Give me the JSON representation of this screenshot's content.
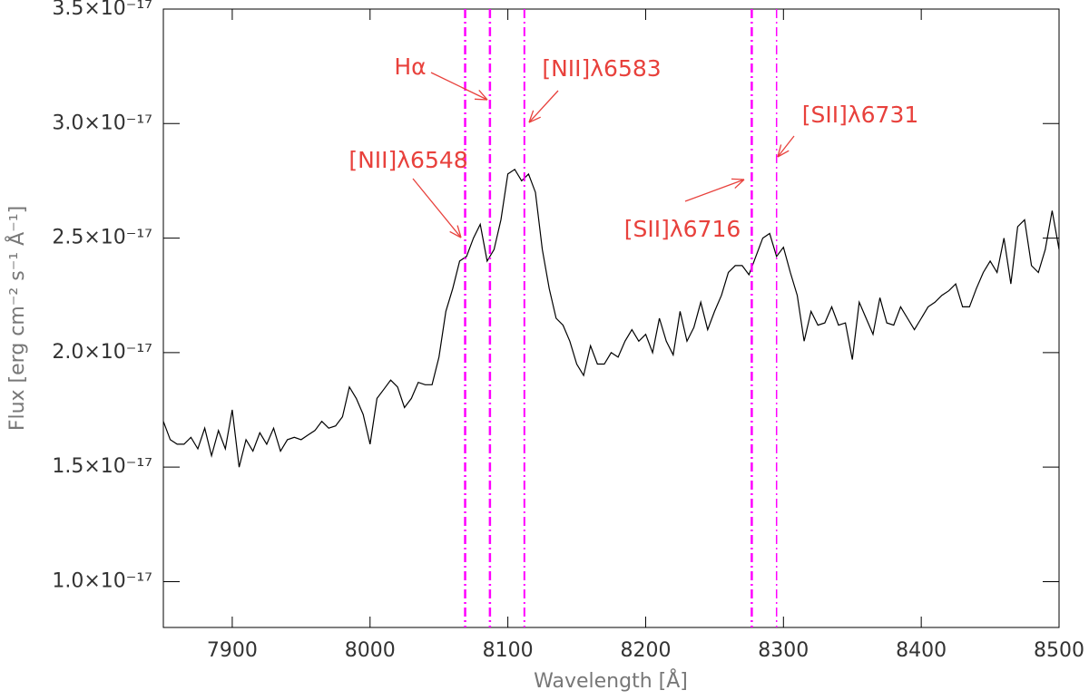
{
  "chart_data": {
    "type": "line",
    "xlabel": "Wavelength [Å]",
    "ylabel": "Flux [erg cm⁻² s⁻¹ Å⁻¹]",
    "color": "#000000",
    "x": [
      7850,
      7855,
      7860,
      7865,
      7870,
      7875,
      7880,
      7885,
      7890,
      7895,
      7900,
      7905,
      7910,
      7915,
      7920,
      7925,
      7930,
      7935,
      7940,
      7945,
      7950,
      7955,
      7960,
      7965,
      7970,
      7975,
      7980,
      7985,
      7990,
      7995,
      8000,
      8005,
      8010,
      8015,
      8020,
      8025,
      8030,
      8035,
      8040,
      8045,
      8050,
      8055,
      8060,
      8065,
      8070,
      8075,
      8080,
      8085,
      8090,
      8095,
      8100,
      8105,
      8110,
      8115,
      8120,
      8125,
      8130,
      8135,
      8140,
      8145,
      8150,
      8155,
      8160,
      8165,
      8170,
      8175,
      8180,
      8185,
      8190,
      8195,
      8200,
      8205,
      8210,
      8215,
      8220,
      8225,
      8230,
      8235,
      8240,
      8245,
      8250,
      8255,
      8260,
      8265,
      8270,
      8275,
      8280,
      8285,
      8290,
      8295,
      8300,
      8305,
      8310,
      8315,
      8320,
      8325,
      8330,
      8335,
      8340,
      8345,
      8350,
      8355,
      8360,
      8365,
      8370,
      8375,
      8380,
      8385,
      8390,
      8395,
      8400,
      8405,
      8410,
      8415,
      8420,
      8425,
      8430,
      8435,
      8440,
      8445,
      8450,
      8455,
      8460,
      8465,
      8470,
      8475,
      8480,
      8485,
      8490,
      8495,
      8500
    ],
    "values": [
      1.7e-17,
      1.62e-17,
      1.6e-17,
      1.6e-17,
      1.63e-17,
      1.58e-17,
      1.67e-17,
      1.55e-17,
      1.66e-17,
      1.58e-17,
      1.75e-17,
      1.5e-17,
      1.62e-17,
      1.57e-17,
      1.65e-17,
      1.6e-17,
      1.67e-17,
      1.57e-17,
      1.62e-17,
      1.63e-17,
      1.62e-17,
      1.64e-17,
      1.66e-17,
      1.7e-17,
      1.67e-17,
      1.68e-17,
      1.72e-17,
      1.85e-17,
      1.8e-17,
      1.73e-17,
      1.6e-17,
      1.8e-17,
      1.84e-17,
      1.88e-17,
      1.85e-17,
      1.76e-17,
      1.8e-17,
      1.87e-17,
      1.86e-17,
      1.86e-17,
      1.98e-17,
      2.18e-17,
      2.28e-17,
      2.4e-17,
      2.42e-17,
      2.5e-17,
      2.56e-17,
      2.4e-17,
      2.45e-17,
      2.58e-17,
      2.78e-17,
      2.8e-17,
      2.75e-17,
      2.78e-17,
      2.7e-17,
      2.45e-17,
      2.28e-17,
      2.15e-17,
      2.12e-17,
      2.05e-17,
      1.95e-17,
      1.9e-17,
      2.03e-17,
      1.95e-17,
      1.95e-17,
      2e-17,
      1.98e-17,
      2.05e-17,
      2.1e-17,
      2.05e-17,
      2.08e-17,
      2e-17,
      2.15e-17,
      2.05e-17,
      1.99e-17,
      2.18e-17,
      2.05e-17,
      2.11e-17,
      2.22e-17,
      2.1e-17,
      2.18e-17,
      2.25e-17,
      2.35e-17,
      2.38e-17,
      2.38e-17,
      2.34e-17,
      2.42e-17,
      2.5e-17,
      2.52e-17,
      2.42e-17,
      2.46e-17,
      2.35e-17,
      2.25e-17,
      2.05e-17,
      2.18e-17,
      2.12e-17,
      2.13e-17,
      2.2e-17,
      2.12e-17,
      2.13e-17,
      1.97e-17,
      2.22e-17,
      2.15e-17,
      2.08e-17,
      2.24e-17,
      2.13e-17,
      2.12e-17,
      2.2e-17,
      2.15e-17,
      2.1e-17,
      2.15e-17,
      2.2e-17,
      2.22e-17,
      2.25e-17,
      2.27e-17,
      2.3e-17,
      2.2e-17,
      2.2e-17,
      2.28e-17,
      2.35e-17,
      2.4e-17,
      2.35e-17,
      2.5e-17,
      2.3e-17,
      2.55e-17,
      2.58e-17,
      2.38e-17,
      2.35e-17,
      2.45e-17,
      2.62e-17,
      2.45e-17
    ],
    "xlim": [
      7850,
      8500
    ],
    "xticks": [
      7900,
      8000,
      8100,
      8200,
      8300,
      8400,
      8500
    ],
    "ylim": [
      8e-18,
      3.5e-17
    ],
    "yticks": [
      {
        "value": 1e-17,
        "label": "1.0×10⁻¹⁷"
      },
      {
        "value": 1.5e-17,
        "label": "1.5×10⁻¹⁷"
      },
      {
        "value": 2e-17,
        "label": "2.0×10⁻¹⁷"
      },
      {
        "value": 2.5e-17,
        "label": "2.5×10⁻¹⁷"
      },
      {
        "value": 3e-17,
        "label": "3.0×10⁻¹⁷"
      },
      {
        "value": 3.5e-17,
        "label": "3.5×10⁻¹⁷"
      }
    ],
    "vlines_color": "#ff00ff",
    "annotation_color": "#e8413c",
    "vlines": [
      {
        "x": 8069,
        "label": "[NII]λ6548"
      },
      {
        "x": 8087,
        "label": "Hα"
      },
      {
        "x": 8112,
        "label": "[NII]λ6583"
      },
      {
        "x": 8277,
        "label": "[SII]λ6716"
      },
      {
        "x": 8295,
        "label": "[SII]λ6731"
      }
    ]
  }
}
